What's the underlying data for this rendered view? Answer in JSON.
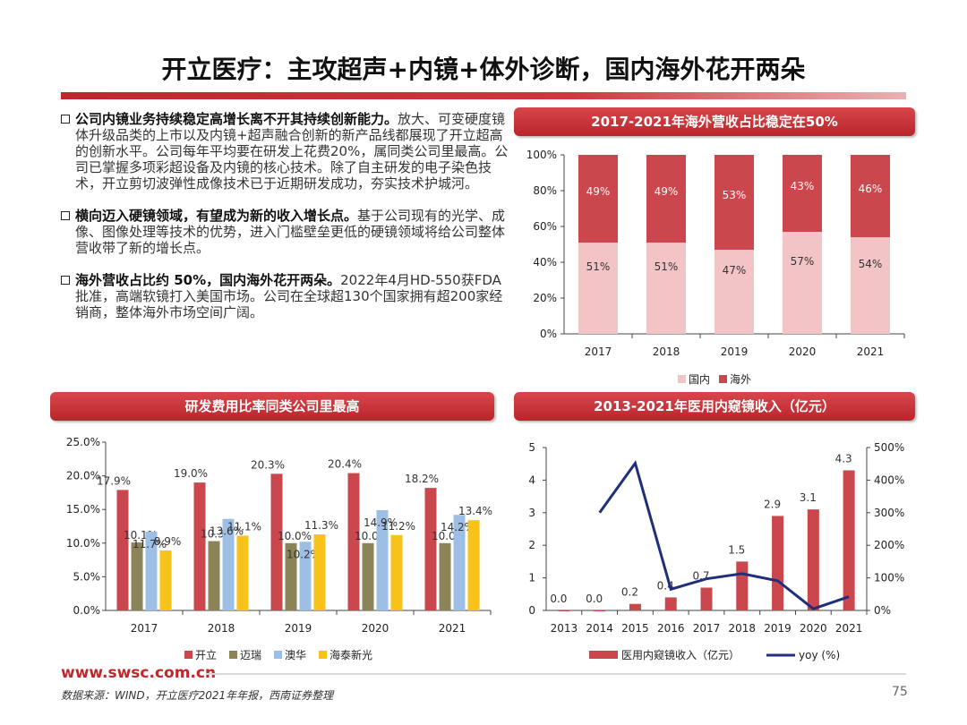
{
  "title": "开立医疗：主攻超声+内镜+体外诊断，国内海外花开两朵",
  "bullets": [
    {
      "bold": "公司内镜业务持续稳定高增长离不开其持续创新能力。",
      "text": "放大、可变硬度镜体升级品类的上市以及内镜+超声融合创新的新产品线都展现了开立超高的创新水平。公司每年平均要在研发上花费20%，属同类公司里最高。公司已掌握多项彩超设备及内镜的核心技术。除了自主研发的电子染色技术，开立剪切波弹性成像技术已于近期研发成功，夯实技术护城河。"
    },
    {
      "bold": "横向迈入硬镜领域，有望成为新的收入增长点。",
      "text": "基于公司现有的光学、成像、图像处理等技术的优势，进入门槛壁垒更低的硬镜领域将给公司整体营收带了新的增长点。"
    },
    {
      "bold": "海外营收占比约 50%，国内海外花开两朵。",
      "text": "2022年4月HD-550获FDA批准，高端软镜打入美国市场。公司在全球超130个国家拥有超200家经销商，整体海外市场空间广阔。"
    }
  ],
  "chart_data": [
    {
      "type": "bar",
      "title": "2017-2021年海外营收占比稳定在50%",
      "stacked": true,
      "categories": [
        "2017",
        "2018",
        "2019",
        "2020",
        "2021"
      ],
      "series": [
        {
          "name": "国内",
          "values": [
            51,
            51,
            47,
            57,
            54
          ],
          "labels": [
            "51%",
            "51%",
            "47%",
            "57%",
            "54%"
          ],
          "color": "#f2c4c5"
        },
        {
          "name": "海外",
          "values": [
            49,
            49,
            53,
            43,
            46
          ],
          "labels": [
            "49%",
            "49%",
            "53%",
            "43%",
            "46%"
          ],
          "color": "#c9474d"
        }
      ],
      "yticks": [
        "0%",
        "20%",
        "40%",
        "60%",
        "80%",
        "100%"
      ],
      "ylim": [
        0,
        100
      ],
      "legend": "bottom"
    },
    {
      "type": "bar",
      "title": "研发费用比率同类公司里最高",
      "categories": [
        "2017",
        "2018",
        "2019",
        "2020",
        "2021"
      ],
      "series": [
        {
          "name": "开立",
          "values": [
            17.9,
            19.0,
            20.3,
            20.4,
            18.2
          ],
          "labels": [
            "17.9%",
            "19.0%",
            "20.3%",
            "20.4%",
            "18.2%"
          ],
          "color": "#c9474d"
        },
        {
          "name": "迈瑞",
          "values": [
            10.1,
            10.3,
            10.0,
            10.0,
            10.0
          ],
          "labels": [
            "10.1%",
            "10.3%",
            "10.0%",
            "10.0%",
            "10.0%"
          ],
          "color": "#8c8459"
        },
        {
          "name": "澳华",
          "values": [
            11.7,
            13.6,
            10.2,
            14.9,
            14.2
          ],
          "labels": [
            "11.7%",
            "13.6%",
            "10.2%",
            "14.9%",
            "14.2%"
          ],
          "color": "#9dbfe6"
        },
        {
          "name": "海泰新光",
          "values": [
            8.9,
            11.1,
            11.3,
            11.2,
            13.4
          ],
          "labels": [
            "8.9%",
            "11.1%",
            "11.3%",
            "11.2%",
            "13.4%"
          ],
          "color": "#f7c21a"
        }
      ],
      "yticks": [
        "0.0%",
        "5.0%",
        "10.0%",
        "15.0%",
        "20.0%",
        "25.0%"
      ],
      "ylim": [
        0,
        25
      ],
      "legend": "bottom"
    },
    {
      "type": "bar",
      "title": "2013-2021年医用内窥镜收入（亿元）",
      "categories": [
        "2013",
        "2014",
        "2015",
        "2016",
        "2017",
        "2018",
        "2019",
        "2020",
        "2021"
      ],
      "series": [
        {
          "name": "医用内窥镜收入（亿元）",
          "type": "bar",
          "axis": "left",
          "values": [
            0.0,
            0.0,
            0.2,
            0.4,
            0.7,
            1.5,
            2.9,
            3.1,
            4.3
          ],
          "labels": [
            "0.0",
            "0.0",
            "0.2",
            "0.4",
            "0.7",
            "1.5",
            "2.9",
            "3.1",
            "4.3"
          ],
          "color": "#c9474d"
        },
        {
          "name": "yoy (%)",
          "type": "line",
          "axis": "right",
          "values": [
            null,
            300,
            452,
            65,
            97,
            113,
            91,
            5,
            42
          ],
          "color": "#1f2f7a"
        }
      ],
      "yticks_left": [
        "0",
        "1",
        "2",
        "3",
        "4",
        "5"
      ],
      "ylim_left": [
        0,
        5
      ],
      "yticks_right": [
        "0%",
        "100%",
        "200%",
        "300%",
        "400%",
        "500%"
      ],
      "ylim_right": [
        0,
        500
      ],
      "legend": "bottom"
    }
  ],
  "footer": {
    "url": "www.swsc.com.cn",
    "source": "数据来源：WIND，开立医疗2021年年报，西南证券整理",
    "page": "75"
  }
}
